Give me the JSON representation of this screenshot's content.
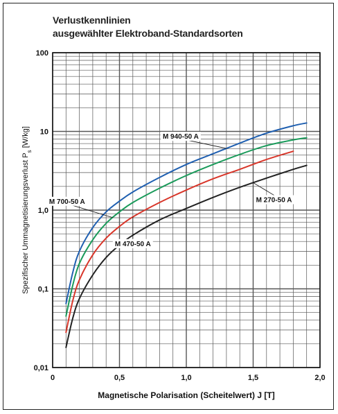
{
  "chart_data": {
    "type": "line",
    "title_line1": "Verlustkennlinien",
    "title_line2": "ausgewählter Elektroband-Standardsorten",
    "xlabel": "Magnetische Polarisation (Scheitelwert) J  [T]",
    "ylabel": "Spezifischer Ummagnetisierungsverlust P",
    "ylabel_sub": "s",
    "ylabel_unit": "[W/kg]",
    "xlim": [
      0,
      2.0
    ],
    "ylim": [
      0.01,
      100
    ],
    "yscale": "log",
    "grid": true,
    "x_ticks": [
      {
        "v": 0,
        "label": "0"
      },
      {
        "v": 0.5,
        "label": "0,5"
      },
      {
        "v": 1.0,
        "label": "1,0"
      },
      {
        "v": 1.5,
        "label": "1,5"
      },
      {
        "v": 2.0,
        "label": "2,0"
      }
    ],
    "y_ticks": [
      {
        "v": 0.01,
        "label": "0,01"
      },
      {
        "v": 0.1,
        "label": "0,1"
      },
      {
        "v": 1,
        "label": "1,0"
      },
      {
        "v": 10,
        "label": "10"
      },
      {
        "v": 100,
        "label": "100"
      }
    ],
    "series": [
      {
        "name": "M 940-50 A",
        "color": "#1f5fb0",
        "x": [
          0.1,
          0.15,
          0.2,
          0.3,
          0.4,
          0.5,
          0.6,
          0.8,
          1.0,
          1.2,
          1.4,
          1.6,
          1.8,
          1.9
        ],
        "y": [
          0.065,
          0.16,
          0.3,
          0.6,
          0.95,
          1.3,
          1.7,
          2.6,
          3.8,
          5.2,
          7.1,
          9.5,
          11.8,
          12.8
        ]
      },
      {
        "name": "M 700-50 A",
        "color": "#1a9a5a",
        "x": [
          0.1,
          0.15,
          0.2,
          0.3,
          0.4,
          0.5,
          0.6,
          0.8,
          1.0,
          1.2,
          1.4,
          1.6,
          1.8,
          1.9
        ],
        "y": [
          0.045,
          0.11,
          0.21,
          0.42,
          0.68,
          0.95,
          1.25,
          1.9,
          2.75,
          3.8,
          5.1,
          6.6,
          7.8,
          8.3
        ]
      },
      {
        "name": "M 470-50 A",
        "color": "#d8362a",
        "x": [
          0.1,
          0.15,
          0.2,
          0.3,
          0.4,
          0.5,
          0.6,
          0.8,
          1.0,
          1.2,
          1.4,
          1.6,
          1.8
        ],
        "y": [
          0.028,
          0.07,
          0.13,
          0.27,
          0.44,
          0.62,
          0.82,
          1.25,
          1.8,
          2.5,
          3.3,
          4.4,
          5.6
        ]
      },
      {
        "name": "M 270-50 A",
        "color": "#222222",
        "x": [
          0.1,
          0.15,
          0.2,
          0.3,
          0.4,
          0.5,
          0.6,
          0.8,
          1.0,
          1.2,
          1.4,
          1.6,
          1.8,
          1.9
        ],
        "y": [
          0.018,
          0.042,
          0.075,
          0.15,
          0.25,
          0.36,
          0.48,
          0.75,
          1.05,
          1.45,
          1.95,
          2.55,
          3.3,
          3.7
        ]
      }
    ],
    "series_label_anchors": [
      {
        "series": 0,
        "at_x": 1.3
      },
      {
        "series": 1,
        "at_x": 0.45
      },
      {
        "series": 2,
        "at_x": 0.6
      },
      {
        "series": 3,
        "at_x": 1.5
      }
    ]
  }
}
